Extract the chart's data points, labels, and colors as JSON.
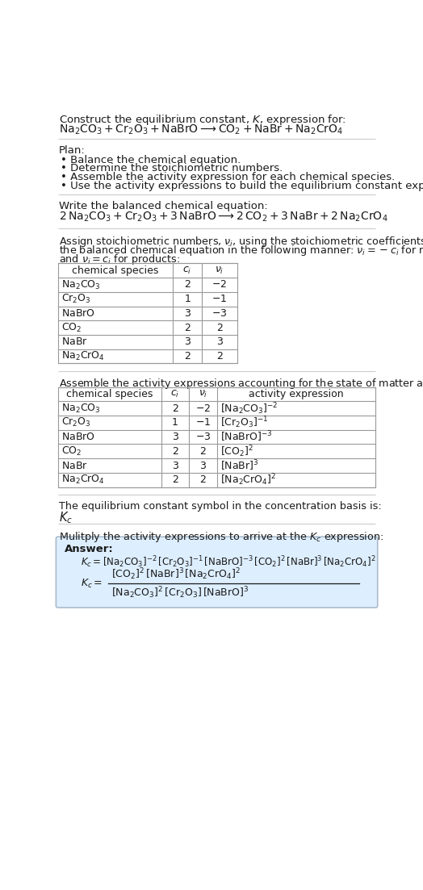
{
  "title_line1": "Construct the equilibrium constant, $K$, expression for:",
  "title_line2": "$\\mathrm{Na_2CO_3 + Cr_2O_3 + NaBrO \\longrightarrow CO_2 + NaBr + Na_2CrO_4}$",
  "plan_header": "Plan:",
  "plan_items": [
    "• Balance the chemical equation.",
    "• Determine the stoichiometric numbers.",
    "• Assemble the activity expression for each chemical species.",
    "• Use the activity expressions to build the equilibrium constant expression."
  ],
  "balanced_header": "Write the balanced chemical equation:",
  "balanced_eq": "$2\\,\\mathrm{Na_2CO_3 + Cr_2O_3 + 3\\,NaBrO \\longrightarrow 2\\,CO_2 + 3\\,NaBr + 2\\,Na_2CrO_4}$",
  "stoich_header_parts": [
    "Assign stoichiometric numbers, $\\nu_i$, using the stoichiometric coefficients, $c_i$, from",
    "the balanced chemical equation in the following manner: $\\nu_i = -c_i$ for reactants",
    "and $\\nu_i = c_i$ for products:"
  ],
  "table1_headers": [
    "chemical species",
    "$c_i$",
    "$\\nu_i$"
  ],
  "table1_rows": [
    [
      "$\\mathrm{Na_2CO_3}$",
      "2",
      "$-2$"
    ],
    [
      "$\\mathrm{Cr_2O_3}$",
      "1",
      "$-1$"
    ],
    [
      "$\\mathrm{NaBrO}$",
      "3",
      "$-3$"
    ],
    [
      "$\\mathrm{CO_2}$",
      "2",
      "2"
    ],
    [
      "$\\mathrm{NaBr}$",
      "3",
      "3"
    ],
    [
      "$\\mathrm{Na_2CrO_4}$",
      "2",
      "2"
    ]
  ],
  "activity_header": "Assemble the activity expressions accounting for the state of matter and $\\nu_i$:",
  "table2_headers": [
    "chemical species",
    "$c_i$",
    "$\\nu_i$",
    "activity expression"
  ],
  "table2_rows": [
    [
      "$\\mathrm{Na_2CO_3}$",
      "2",
      "$-2$",
      "$[\\mathrm{Na_2CO_3}]^{-2}$"
    ],
    [
      "$\\mathrm{Cr_2O_3}$",
      "1",
      "$-1$",
      "$[\\mathrm{Cr_2O_3}]^{-1}$"
    ],
    [
      "$\\mathrm{NaBrO}$",
      "3",
      "$-3$",
      "$[\\mathrm{NaBrO}]^{-3}$"
    ],
    [
      "$\\mathrm{CO_2}$",
      "2",
      "2",
      "$[\\mathrm{CO_2}]^2$"
    ],
    [
      "$\\mathrm{NaBr}$",
      "3",
      "3",
      "$[\\mathrm{NaBr}]^3$"
    ],
    [
      "$\\mathrm{Na_2CrO_4}$",
      "2",
      "2",
      "$[\\mathrm{Na_2CrO_4}]^2$"
    ]
  ],
  "kc_header": "The equilibrium constant symbol in the concentration basis is:",
  "kc_symbol": "$K_c$",
  "multiply_header": "Mulitply the activity expressions to arrive at the $K_c$ expression:",
  "answer_label": "Answer:",
  "answer_line1": "$K_c = [\\mathrm{Na_2CO_3}]^{-2}\\,[\\mathrm{Cr_2O_3}]^{-1}\\,[\\mathrm{NaBrO}]^{-3}\\,[\\mathrm{CO_2}]^2\\,[\\mathrm{NaBr}]^3\\,[\\mathrm{Na_2CrO_4}]^2$",
  "answer_num": "$[\\mathrm{CO_2}]^2\\,[\\mathrm{NaBr}]^3\\,[\\mathrm{Na_2CrO_4}]^2$",
  "answer_den": "$[\\mathrm{Na_2CO_3}]^2\\,[\\mathrm{Cr_2O_3}]\\,[\\mathrm{NaBrO}]^3$",
  "answer_equals": "$=$",
  "bg_color": "#ffffff",
  "answer_box_color": "#ddeeff",
  "answer_box_edge": "#aabbcc",
  "line_color": "#cccccc",
  "table_edge_color": "#999999",
  "font_size": 9.5,
  "small_font": 9.0,
  "fig_width": 5.24,
  "fig_height": 11.03,
  "dpi": 100
}
